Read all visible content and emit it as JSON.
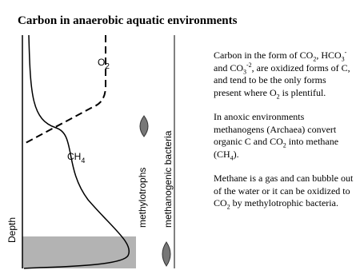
{
  "header": {
    "title": "Carbon in anaerobic aquatic environments"
  },
  "diagram": {
    "o2_label": [
      "O",
      "2"
    ],
    "ch4_label": [
      "CH",
      "4"
    ],
    "depth_label": "Depth",
    "methylotrophs_label": "methylotrophs",
    "methanogens_label": "methanogenic bacteria"
  },
  "paragraphs": [
    [
      "Carbon in the form of CO",
      "2",
      ", HCO",
      "3",
      "-",
      " and  CO",
      "3",
      "-2",
      ", are oxidized forms of C, and tend to be the only forms present where O",
      "2",
      " is plentiful."
    ],
    [
      "In anoxic environments methanogens (Archaea) convert organic C and CO",
      "2",
      " into methane (CH",
      "4",
      ")."
    ],
    [
      "Methane is a gas and can bubble out of the water or it can be oxidized to CO",
      "2",
      " by methylotrophic bacteria."
    ]
  ]
}
